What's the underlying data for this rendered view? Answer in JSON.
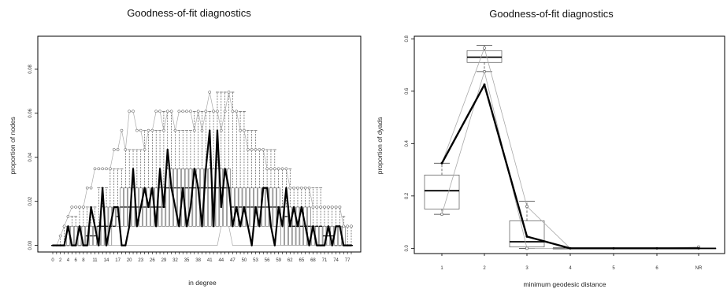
{
  "chart_data": [
    {
      "type": "box-line",
      "title": "Goodness-of-fit diagnostics",
      "xlabel": "in degree",
      "ylabel": "proportion of nodes",
      "ylim": [
        -0.003,
        0.095
      ],
      "y_ticks": [
        "0.00",
        "0.02",
        "0.04",
        "0.06",
        "0.08"
      ],
      "x_tick_labels": [
        "0",
        "2",
        "4",
        "6",
        "8",
        "11",
        "14",
        "17",
        "20",
        "23",
        "26",
        "29",
        "32",
        "35",
        "38",
        "41",
        "44",
        "47",
        "50",
        "53",
        "56",
        "59",
        "62",
        "65",
        "68",
        "71",
        "74",
        "77"
      ],
      "x": [
        0,
        1,
        2,
        3,
        4,
        5,
        6,
        7,
        8,
        9,
        10,
        11,
        12,
        13,
        14,
        15,
        16,
        17,
        18,
        19,
        20,
        21,
        22,
        23,
        24,
        25,
        26,
        27,
        28,
        29,
        30,
        31,
        32,
        33,
        34,
        35,
        36,
        37,
        38,
        39,
        40,
        41,
        42,
        43,
        44,
        45,
        46,
        47,
        48,
        49,
        50,
        51,
        52,
        53,
        54,
        55,
        56,
        57,
        58,
        59,
        60,
        61,
        62,
        63,
        64,
        65,
        66,
        67,
        68,
        69,
        70,
        71,
        72,
        73,
        74,
        75,
        76,
        77,
        78
      ],
      "observed": [
        0,
        0,
        0,
        0,
        0.0087,
        0,
        0,
        0.0087,
        0,
        0,
        0.0174,
        0.0087,
        0,
        0.0261,
        0,
        0.0087,
        0.0174,
        0.0174,
        0,
        0,
        0.0087,
        0.0348,
        0.0087,
        0.0174,
        0.0261,
        0.0174,
        0.0261,
        0.0087,
        0.0348,
        0.0174,
        0.0435,
        0.0261,
        0.0174,
        0.0087,
        0.0261,
        0.0087,
        0.0174,
        0.0348,
        0.0261,
        0.0087,
        0.0348,
        0.0522,
        0.0087,
        0.0522,
        0.0174,
        0.0348,
        0.0261,
        0.0087,
        0.0174,
        0.0087,
        0.0174,
        0.0087,
        0,
        0.0174,
        0.0087,
        0.0261,
        0.0261,
        0.0087,
        0,
        0.0174,
        0.0087,
        0.0261,
        0.0087,
        0.0174,
        0.0087,
        0.0174,
        0.0087,
        0,
        0.0087,
        0,
        0,
        0,
        0.0087,
        0,
        0.0087,
        0.0087,
        0,
        0,
        0
      ],
      "box_median": [
        0,
        0,
        0,
        0,
        0,
        0,
        0,
        0,
        0,
        0.0043,
        0.0043,
        0.0043,
        0.0087,
        0.0087,
        0.0087,
        0.0087,
        0.0087,
        0.0131,
        0.0174,
        0.0174,
        0.0174,
        0.0174,
        0.0174,
        0.0174,
        0.0174,
        0.0174,
        0.0174,
        0.0174,
        0.0174,
        0.0174,
        0.0261,
        0.0261,
        0.0261,
        0.0261,
        0.0261,
        0.0261,
        0.0261,
        0.0261,
        0.0261,
        0.0261,
        0.0261,
        0.0261,
        0.0261,
        0.0261,
        0.0261,
        0.0261,
        0.0261,
        0.0174,
        0.0174,
        0.0174,
        0.0174,
        0.0174,
        0.0174,
        0.0174,
        0.0174,
        0.0174,
        0.0174,
        0.0174,
        0.0174,
        0.0174,
        0.0174,
        0.0131,
        0.0087,
        0.0087,
        0.0087,
        0.0087,
        0.0087,
        0.0087,
        0.0087,
        0.0087,
        0.0087,
        0.0043,
        0.0043,
        0.0043,
        0,
        0,
        0,
        0,
        0
      ],
      "box_q1": [
        0,
        0,
        0,
        0,
        0,
        0,
        0,
        0,
        0,
        0,
        0,
        0,
        0,
        0,
        0,
        0,
        0.0087,
        0.0087,
        0.0087,
        0.0087,
        0.0087,
        0.0087,
        0.0087,
        0.0087,
        0.0087,
        0.0087,
        0.0087,
        0.0087,
        0.0087,
        0.0087,
        0.0087,
        0.0087,
        0.0087,
        0.0087,
        0.0087,
        0.0087,
        0.0087,
        0.0087,
        0.0087,
        0.0087,
        0.0087,
        0.0087,
        0.0087,
        0.0087,
        0.0087,
        0.0087,
        0.0087,
        0.0087,
        0.0087,
        0.0087,
        0.0087,
        0.0087,
        0.0087,
        0.0087,
        0.0087,
        0.0087,
        0.0087,
        0.0087,
        0.0087,
        0.0087,
        0,
        0,
        0,
        0,
        0,
        0,
        0,
        0,
        0,
        0,
        0,
        0,
        0,
        0,
        0,
        0,
        0,
        0,
        0
      ],
      "box_q3": [
        0,
        0,
        0,
        0,
        0.0087,
        0.0087,
        0.0087,
        0.0087,
        0.0087,
        0.0087,
        0.0087,
        0.0087,
        0.0087,
        0.0174,
        0.0174,
        0.0174,
        0.0174,
        0.0174,
        0.0261,
        0.0261,
        0.0261,
        0.0261,
        0.0261,
        0.0261,
        0.0261,
        0.0261,
        0.0261,
        0.0261,
        0.0261,
        0.0261,
        0.0348,
        0.0348,
        0.0348,
        0.0348,
        0.0348,
        0.0348,
        0.0348,
        0.0348,
        0.0348,
        0.0348,
        0.0348,
        0.0348,
        0.0348,
        0.0348,
        0.0348,
        0.0348,
        0.0348,
        0.0261,
        0.0261,
        0.0261,
        0.0261,
        0.0261,
        0.0261,
        0.0261,
        0.0261,
        0.0261,
        0.0261,
        0.0261,
        0.0261,
        0.0261,
        0.0174,
        0.0174,
        0.0174,
        0.0174,
        0.0174,
        0.0174,
        0.0174,
        0.0174,
        0.0087,
        0.0087,
        0.0087,
        0.0087,
        0.0087,
        0.0087,
        0.0087,
        0.0087,
        0.0087,
        0,
        0
      ],
      "whisker_high": [
        0,
        0,
        0.0043,
        0.0087,
        0.0087,
        0.0131,
        0.0131,
        0.0174,
        0.0174,
        0.0174,
        0.0174,
        0.0174,
        0.0261,
        0.0261,
        0.0261,
        0.0348,
        0.0348,
        0.0348,
        0.0348,
        0.0435,
        0.0435,
        0.0435,
        0.0435,
        0.0435,
        0.0522,
        0.0522,
        0.0522,
        0.0522,
        0.0522,
        0.0609,
        0.0609,
        0.0609,
        0.0522,
        0.0522,
        0.0522,
        0.0522,
        0.0522,
        0.0609,
        0.0609,
        0.0609,
        0.0609,
        0.0609,
        0.0609,
        0.0696,
        0.0696,
        0.0696,
        0.0696,
        0.0696,
        0.0609,
        0.0609,
        0.0609,
        0.0522,
        0.0522,
        0.0522,
        0.0435,
        0.0435,
        0.0435,
        0.0435,
        0.0435,
        0.0348,
        0.0348,
        0.0348,
        0.0348,
        0.0261,
        0.0261,
        0.0261,
        0.0261,
        0.0261,
        0.0261,
        0.0261,
        0.0261,
        0.0174,
        0.0174,
        0.0174,
        0.0174,
        0.0174,
        0.0131,
        0.0087,
        0.0087
      ],
      "sim_upper": [
        0,
        0,
        0.0043,
        0.0087,
        0.0131,
        0.0174,
        0.0174,
        0.0174,
        0.0174,
        0.0261,
        0.0261,
        0.0348,
        0.0348,
        0.0348,
        0.0348,
        0.0348,
        0.0435,
        0.0435,
        0.0522,
        0.0435,
        0.0609,
        0.0609,
        0.0522,
        0.0522,
        0.0435,
        0.0522,
        0.0522,
        0.0609,
        0.0609,
        0.0522,
        0.0609,
        0.0609,
        0.0522,
        0.0609,
        0.0609,
        0.0609,
        0.0609,
        0.0522,
        0.0609,
        0.0522,
        0.0609,
        0.0696,
        0.0609,
        0.0609,
        0.0522,
        0.0609,
        0.0696,
        0.0609,
        0.0609,
        0.0522,
        0.0522,
        0.0435,
        0.0435,
        0.0435,
        0.0435,
        0.0435,
        0.0348,
        0.0348,
        0.0348,
        0.0348,
        0.0348,
        0.0348,
        0.0261,
        0.0261,
        0.0261,
        0.0261,
        0.0261,
        0.0261,
        0.0174,
        0.0174,
        0.0174,
        0.0174,
        0.0174,
        0.0174,
        0.0174,
        0.0174,
        0.0087,
        0.0087,
        0.0087
      ],
      "sim_lower": [
        0,
        0,
        0,
        0,
        0,
        0,
        0,
        0,
        0,
        0,
        0,
        0,
        0,
        0,
        0,
        0,
        0,
        0,
        0,
        0,
        0,
        0,
        0,
        0,
        0,
        0,
        0,
        0,
        0,
        0,
        0,
        0,
        0,
        0,
        0,
        0,
        0,
        0,
        0,
        0,
        0,
        0,
        0,
        0,
        0.0087,
        0.0087,
        0.0087,
        0,
        0,
        0,
        0,
        0,
        0,
        0,
        0,
        0,
        0,
        0,
        0,
        0,
        0,
        0,
        0,
        0,
        0,
        0,
        0,
        0,
        0,
        0,
        0,
        0,
        0,
        0,
        0,
        0,
        0,
        0,
        0
      ]
    },
    {
      "type": "box-line",
      "title": "Goodness-of-fit diagnostics",
      "xlabel": "minimum geodesic distance",
      "ylabel": "proportion of dyads",
      "ylim": [
        -0.02,
        0.81
      ],
      "y_ticks": [
        "0.0",
        "0.2",
        "0.4",
        "0.6",
        "0.8"
      ],
      "categories": [
        "1",
        "2",
        "3",
        "4",
        "5",
        "6",
        "NR"
      ],
      "observed": [
        0.325,
        0.625,
        0.045,
        0.0,
        0.0,
        0.0,
        0.0
      ],
      "box_q1": [
        0.15,
        0.71,
        0.005,
        0.0,
        0.0,
        0.0,
        0.0
      ],
      "box_median": [
        0.22,
        0.73,
        0.025,
        0.0,
        0.0,
        0.0,
        0.0
      ],
      "box_q3": [
        0.28,
        0.755,
        0.105,
        0.0,
        0.0,
        0.0,
        0.0
      ],
      "whisker_low": [
        0.13,
        0.675,
        0.0,
        0.0,
        0.0,
        0.0,
        0.0
      ],
      "whisker_high": [
        0.325,
        0.775,
        0.18,
        0.0,
        0.0,
        0.0,
        0.0
      ],
      "sim_upper": [
        0.325,
        0.765,
        0.16,
        0.0,
        0.0,
        0.0,
        0.005
      ],
      "sim_lower": [
        0.13,
        0.675,
        0.0,
        0.0,
        0.0,
        0.0,
        0.0
      ]
    }
  ]
}
